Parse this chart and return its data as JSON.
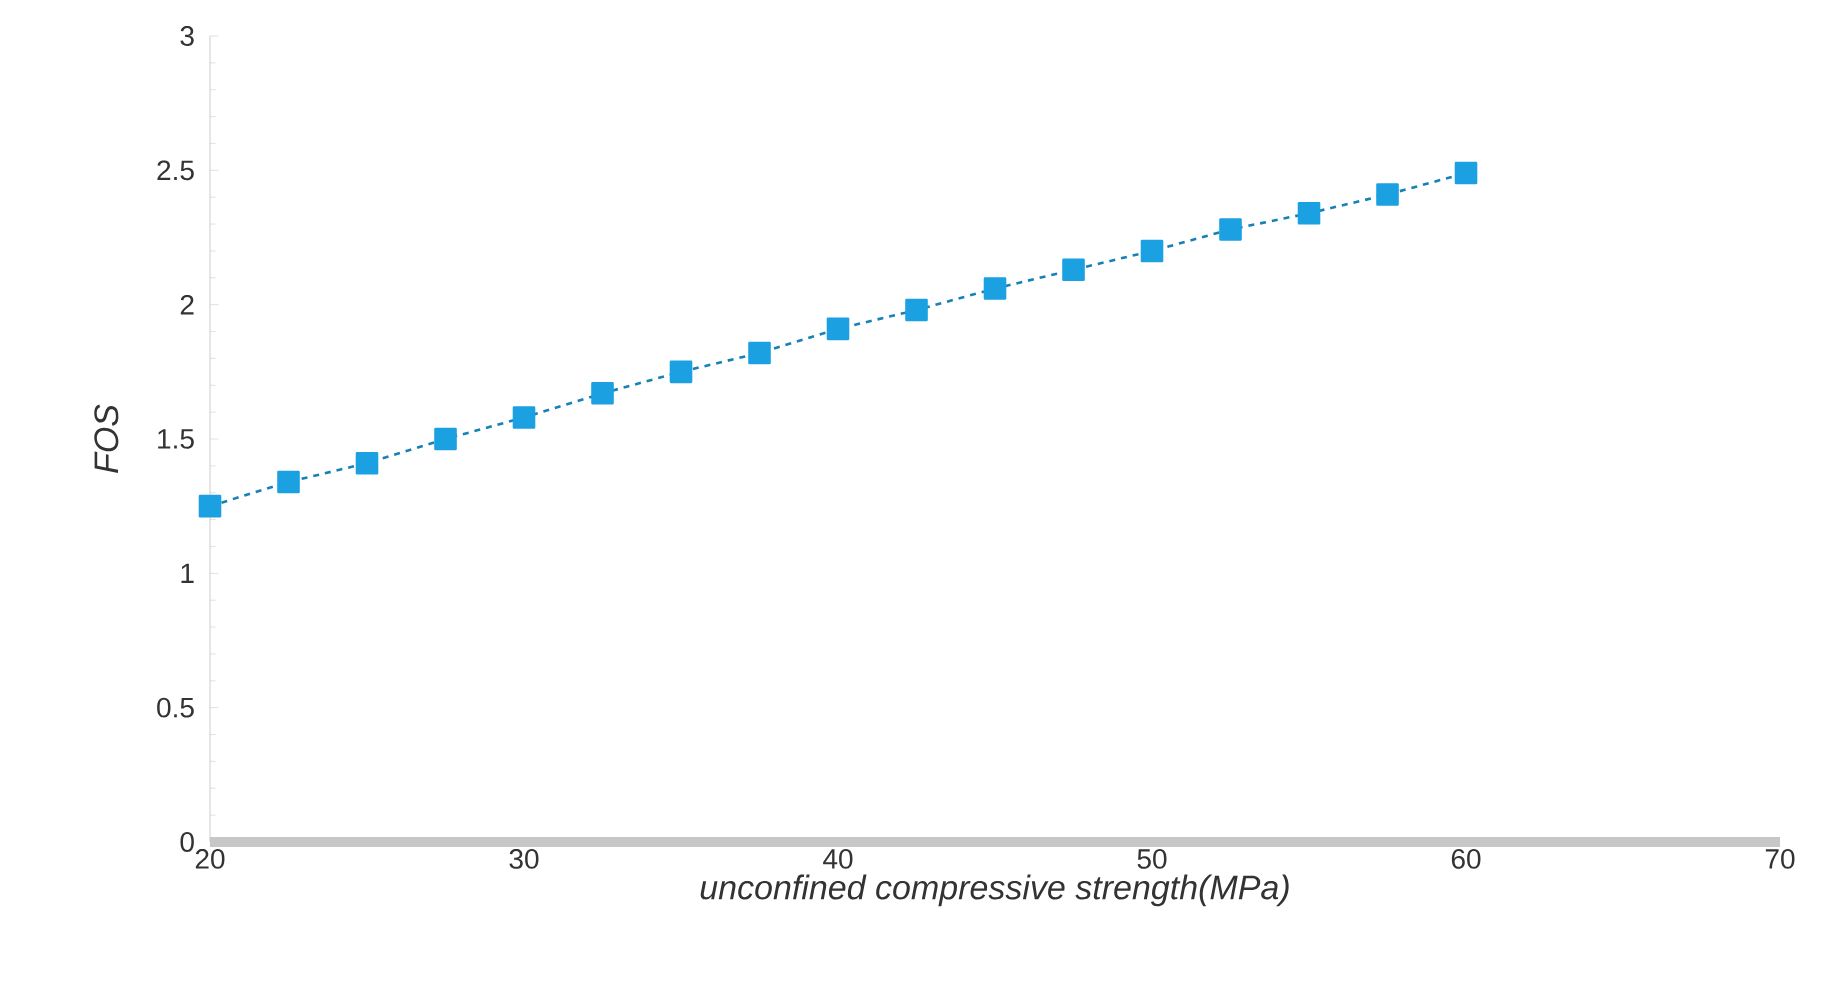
{
  "chart_data": {
    "type": "line",
    "xlabel": "unconfined compressive  strength(MPa)",
    "ylabel": "FOS",
    "x": [
      20,
      22.5,
      25,
      27.5,
      30,
      32.5,
      35,
      37.5,
      40,
      42.5,
      45,
      47.5,
      50,
      52.5,
      55,
      57.5,
      60
    ],
    "series": [
      {
        "color": "#1ba1e2",
        "values": [
          1.25,
          1.34,
          1.41,
          1.5,
          1.58,
          1.67,
          1.75,
          1.82,
          1.91,
          1.98,
          2.06,
          2.13,
          2.2,
          2.28,
          2.34,
          2.41,
          2.49
        ]
      }
    ],
    "xlim": [
      20,
      70
    ],
    "ylim": [
      0,
      3
    ],
    "xticks": [
      20,
      30,
      40,
      50,
      60,
      70
    ],
    "yticks": [
      0,
      0.5,
      1,
      1.5,
      2,
      2.5,
      3
    ],
    "marker": "square",
    "line_style": "dashed",
    "grid": false
  }
}
